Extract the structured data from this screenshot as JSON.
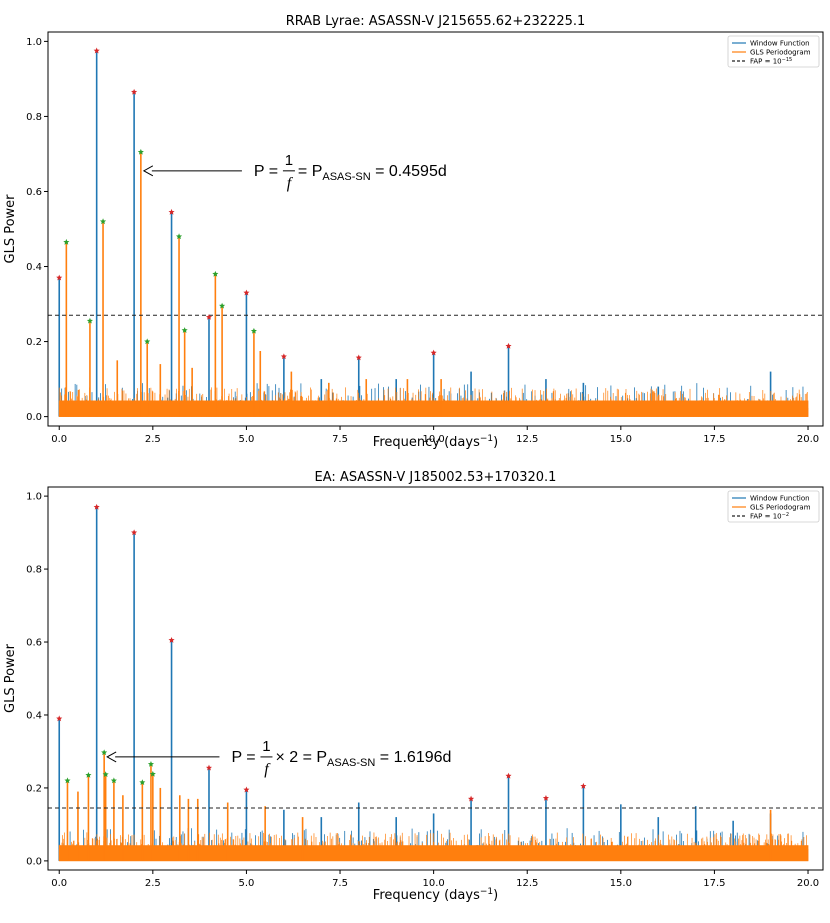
{
  "chart_data": [
    {
      "type": "line",
      "title": "RRAB Lyrae: ASASSN-V J215655.62+232225.1",
      "xlabel_main": "Frequency (days",
      "xlabel_exp": "−1",
      "xlabel_close": ")",
      "ylabel": "GLS Power",
      "xlim": [
        -0.3,
        20.4
      ],
      "ylim": [
        -0.025,
        1.025
      ],
      "xticks": [
        0.0,
        2.5,
        5.0,
        7.5,
        10.0,
        12.5,
        15.0,
        17.5,
        20.0
      ],
      "xtick_labels": [
        "0.0",
        "2.5",
        "5.0",
        "7.5",
        "10.0",
        "12.5",
        "15.0",
        "17.5",
        "20.0"
      ],
      "yticks": [
        0.0,
        0.2,
        0.4,
        0.6,
        0.8,
        1.0
      ],
      "ytick_labels": [
        "0.0",
        "0.2",
        "0.4",
        "0.6",
        "0.8",
        "1.0"
      ],
      "fap_level": 0.27,
      "legend": {
        "position": "top-right",
        "window": "Window Function",
        "gls": "GLS Periodogram",
        "fap_main": "FAP = 10",
        "fap_exp": "−15"
      },
      "colors": {
        "window": "#1f77b4",
        "gls": "#ff7f0e",
        "star_window": "#d62728",
        "star_gls": "#2ca02c"
      },
      "window_peaks": [
        {
          "x": 0.0,
          "y": 0.37
        },
        {
          "x": 1.0,
          "y": 0.975
        },
        {
          "x": 2.0,
          "y": 0.865
        },
        {
          "x": 3.0,
          "y": 0.545
        },
        {
          "x": 4.0,
          "y": 0.265
        },
        {
          "x": 5.0,
          "y": 0.33
        },
        {
          "x": 6.0,
          "y": 0.16
        },
        {
          "x": 8.0,
          "y": 0.157
        },
        {
          "x": 10.0,
          "y": 0.17
        },
        {
          "x": 12.0,
          "y": 0.188
        }
      ],
      "window_minor": [
        {
          "x": 7.0,
          "y": 0.1
        },
        {
          "x": 9.0,
          "y": 0.1
        },
        {
          "x": 11.0,
          "y": 0.12
        },
        {
          "x": 13.0,
          "y": 0.1
        },
        {
          "x": 14.0,
          "y": 0.09
        },
        {
          "x": 16.0,
          "y": 0.08
        },
        {
          "x": 19.0,
          "y": 0.12
        }
      ],
      "gls_peaks": [
        {
          "x": 0.19,
          "y": 0.465
        },
        {
          "x": 0.82,
          "y": 0.255
        },
        {
          "x": 1.17,
          "y": 0.52
        },
        {
          "x": 2.18,
          "y": 0.705
        },
        {
          "x": 2.35,
          "y": 0.2
        },
        {
          "x": 3.2,
          "y": 0.48
        },
        {
          "x": 3.35,
          "y": 0.23
        },
        {
          "x": 4.17,
          "y": 0.38
        },
        {
          "x": 4.35,
          "y": 0.295
        },
        {
          "x": 5.2,
          "y": 0.228
        }
      ],
      "gls_minor": [
        {
          "x": 1.55,
          "y": 0.15
        },
        {
          "x": 2.7,
          "y": 0.14
        },
        {
          "x": 3.55,
          "y": 0.13
        },
        {
          "x": 5.37,
          "y": 0.175
        },
        {
          "x": 6.2,
          "y": 0.12
        },
        {
          "x": 7.2,
          "y": 0.09
        },
        {
          "x": 8.2,
          "y": 0.1
        },
        {
          "x": 9.3,
          "y": 0.1
        },
        {
          "x": 10.2,
          "y": 0.1
        }
      ],
      "annotation": {
        "x": 2.18,
        "y": 0.655,
        "text_x": 5.2,
        "text_y": 0.655,
        "lhs": "P = ",
        "num": "1",
        "den": "f",
        "middle": " = P",
        "sub": "ASAS-SN",
        "rhs": " = 0.4595d"
      },
      "noise_seed": 7
    },
    {
      "type": "line",
      "title": "EA: ASASSN-V J185002.53+170320.1",
      "xlabel_main": "Frequency (days",
      "xlabel_exp": "−1",
      "xlabel_close": ")",
      "ylabel": "GLS Power",
      "xlim": [
        -0.3,
        20.4
      ],
      "ylim": [
        -0.025,
        1.025
      ],
      "xticks": [
        0.0,
        2.5,
        5.0,
        7.5,
        10.0,
        12.5,
        15.0,
        17.5,
        20.0
      ],
      "xtick_labels": [
        "0.0",
        "2.5",
        "5.0",
        "7.5",
        "10.0",
        "12.5",
        "15.0",
        "17.5",
        "20.0"
      ],
      "yticks": [
        0.0,
        0.2,
        0.4,
        0.6,
        0.8,
        1.0
      ],
      "ytick_labels": [
        "0.0",
        "0.2",
        "0.4",
        "0.6",
        "0.8",
        "1.0"
      ],
      "fap_level": 0.145,
      "legend": {
        "position": "top-right",
        "window": "Window Function",
        "gls": "GLS Periodogram",
        "fap_main": "FAP = 10",
        "fap_exp": "−2"
      },
      "colors": {
        "window": "#1f77b4",
        "gls": "#ff7f0e",
        "star_window": "#d62728",
        "star_gls": "#2ca02c"
      },
      "window_peaks": [
        {
          "x": 0.0,
          "y": 0.39
        },
        {
          "x": 1.0,
          "y": 0.97
        },
        {
          "x": 2.0,
          "y": 0.9
        },
        {
          "x": 3.0,
          "y": 0.605
        },
        {
          "x": 4.0,
          "y": 0.255
        },
        {
          "x": 5.0,
          "y": 0.195
        },
        {
          "x": 11.0,
          "y": 0.17
        },
        {
          "x": 12.0,
          "y": 0.233
        },
        {
          "x": 13.0,
          "y": 0.172
        },
        {
          "x": 14.0,
          "y": 0.205
        }
      ],
      "window_minor": [
        {
          "x": 6.0,
          "y": 0.14
        },
        {
          "x": 7.0,
          "y": 0.12
        },
        {
          "x": 8.0,
          "y": 0.16
        },
        {
          "x": 9.0,
          "y": 0.12
        },
        {
          "x": 10.0,
          "y": 0.13
        },
        {
          "x": 15.0,
          "y": 0.155
        },
        {
          "x": 16.0,
          "y": 0.12
        },
        {
          "x": 17.0,
          "y": 0.15
        },
        {
          "x": 18.0,
          "y": 0.11
        },
        {
          "x": 19.0,
          "y": 0.13
        }
      ],
      "gls_peaks": [
        {
          "x": 0.22,
          "y": 0.22
        },
        {
          "x": 0.78,
          "y": 0.235
        },
        {
          "x": 1.2,
          "y": 0.297
        },
        {
          "x": 1.24,
          "y": 0.237
        },
        {
          "x": 1.46,
          "y": 0.22
        },
        {
          "x": 2.22,
          "y": 0.215
        },
        {
          "x": 2.45,
          "y": 0.265
        },
        {
          "x": 2.5,
          "y": 0.238
        }
      ],
      "gls_minor": [
        {
          "x": 0.5,
          "y": 0.19
        },
        {
          "x": 1.7,
          "y": 0.18
        },
        {
          "x": 2.7,
          "y": 0.2
        },
        {
          "x": 3.22,
          "y": 0.18
        },
        {
          "x": 3.45,
          "y": 0.17
        },
        {
          "x": 3.7,
          "y": 0.17
        },
        {
          "x": 4.5,
          "y": 0.16
        },
        {
          "x": 5.5,
          "y": 0.15
        },
        {
          "x": 6.5,
          "y": 0.12
        },
        {
          "x": 19.0,
          "y": 0.14
        }
      ],
      "annotation": {
        "x": 1.2,
        "y": 0.285,
        "text_x": 4.6,
        "text_y": 0.285,
        "lhs": "P = ",
        "num": "1",
        "den": "f",
        "middle": "×  2 = P",
        "sub": "ASAS-SN",
        "rhs": " = 1.6196d"
      },
      "noise_seed": 13
    }
  ]
}
